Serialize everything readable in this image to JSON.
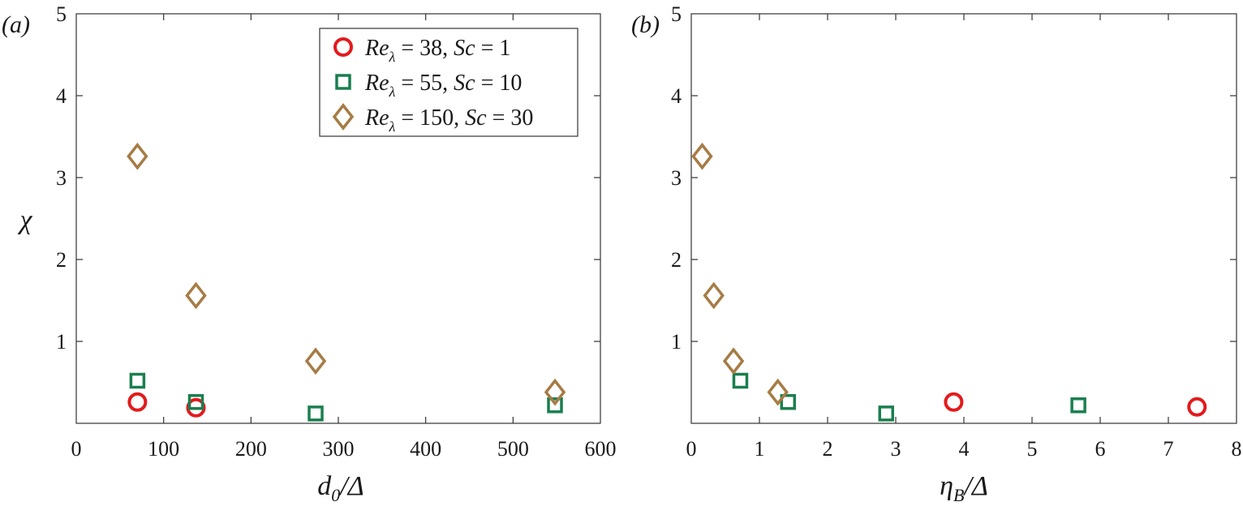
{
  "chart_data": [
    {
      "type": "scatter",
      "panel_label": "(a)",
      "xlabel": "d0/Δ",
      "xlabel_main": "d",
      "xlabel_sub": "0",
      "xlabel_rest": "/Δ",
      "ylabel": "χ",
      "xlim": [
        0,
        600
      ],
      "ylim": [
        0,
        5
      ],
      "xticks": [
        "0",
        "100",
        "200",
        "300",
        "400",
        "500",
        "600"
      ],
      "yticks": [
        "1",
        "2",
        "3",
        "4",
        "5"
      ],
      "grid": false,
      "legend": {
        "placement": "top-right",
        "entries": [
          {
            "re": "Re",
            "sub": "λ",
            "value": " = 38, ",
            "sc": "Sc",
            "scval": " = 1"
          },
          {
            "re": "Re",
            "sub": "λ",
            "value": " = 55, ",
            "sc": "Sc",
            "scval": " = 10"
          },
          {
            "re": "Re",
            "sub": "λ",
            "value": " = 150, ",
            "sc": "Sc",
            "scval": " = 30"
          }
        ]
      },
      "series": [
        {
          "marker": "circle",
          "color": "#e31a1c",
          "points": [
            [
              70,
              0.26
            ],
            [
              137,
              0.19
            ]
          ]
        },
        {
          "marker": "square",
          "color": "#1a7f4f",
          "points": [
            [
              70,
              0.52
            ],
            [
              137,
              0.26
            ],
            [
              274,
              0.12
            ],
            [
              548,
              0.22
            ]
          ]
        },
        {
          "marker": "diamond",
          "color": "#a67c45",
          "points": [
            [
              70,
              3.26
            ],
            [
              137,
              1.56
            ],
            [
              274,
              0.76
            ],
            [
              548,
              0.38
            ]
          ]
        }
      ]
    },
    {
      "type": "scatter",
      "panel_label": "(b)",
      "xlabel": "ηB/Δ",
      "xlabel_main": "η",
      "xlabel_sub": "B",
      "xlabel_rest": "/Δ",
      "xlim": [
        0,
        8
      ],
      "ylim": [
        0,
        5
      ],
      "xticks": [
        "0",
        "1",
        "2",
        "3",
        "4",
        "5",
        "6",
        "7",
        "8"
      ],
      "yticks": [
        "1",
        "2",
        "3",
        "4",
        "5"
      ],
      "grid": false,
      "series": [
        {
          "marker": "circle",
          "color": "#e31a1c",
          "points": [
            [
              3.85,
              0.26
            ],
            [
              7.42,
              0.2
            ]
          ]
        },
        {
          "marker": "square",
          "color": "#1a7f4f",
          "points": [
            [
              0.72,
              0.52
            ],
            [
              1.42,
              0.26
            ],
            [
              2.86,
              0.12
            ],
            [
              5.68,
              0.22
            ]
          ]
        },
        {
          "marker": "diamond",
          "color": "#a67c45",
          "points": [
            [
              0.16,
              3.26
            ],
            [
              0.33,
              1.56
            ],
            [
              0.62,
              0.76
            ],
            [
              1.27,
              0.38
            ]
          ]
        }
      ]
    }
  ]
}
